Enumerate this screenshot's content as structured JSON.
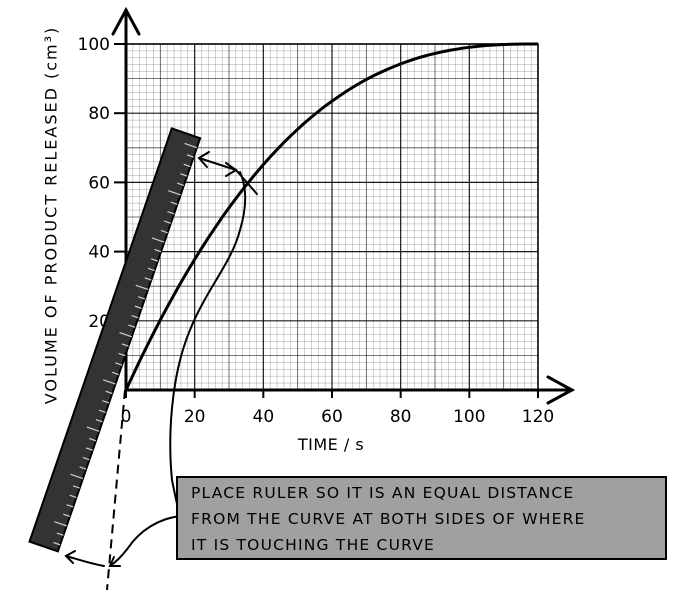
{
  "figure": {
    "x_axis": {
      "title": "TIME / s",
      "ticks": [
        "0",
        "20",
        "40",
        "60",
        "80",
        "100",
        "120"
      ],
      "range": [
        0,
        120
      ]
    },
    "y_axis": {
      "title": "VOLUME  OF  PRODUCT  RELEASED  (cm³)",
      "ticks": [
        "20",
        "40",
        "60",
        "80",
        "100"
      ],
      "range": [
        0,
        100
      ]
    },
    "curve": {
      "description_points": [
        [
          0,
          0
        ],
        [
          10,
          25
        ],
        [
          20,
          45
        ],
        [
          30,
          60
        ],
        [
          40,
          71
        ],
        [
          60,
          85
        ],
        [
          80,
          94
        ],
        [
          100,
          98.5
        ],
        [
          120,
          100
        ]
      ]
    },
    "note": {
      "lines": [
        "PLACE  RULER  SO  IT  IS  AN  EQUAL  DISTANCE",
        "FROM  THE  CURVE  AT  BOTH  SIDES  OF  WHERE",
        "IT  IS  TOUCHING  THE  CURVE"
      ]
    },
    "colors": {
      "ruler": "#333333",
      "note_box": "#a0a0a0",
      "grid": "#000000"
    }
  }
}
